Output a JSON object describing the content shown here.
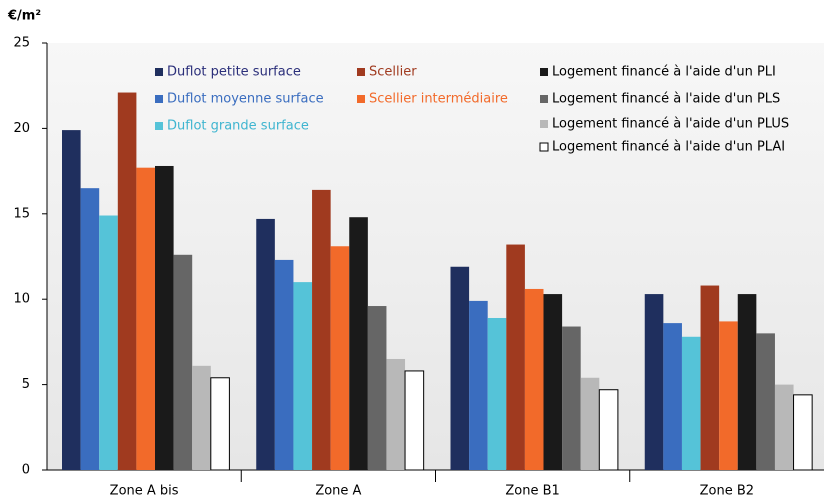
{
  "chart_data": {
    "type": "bar",
    "unit_label": "€/m²",
    "categories": [
      "Zone A bis",
      "Zone A",
      "Zone B1",
      "Zone B2"
    ],
    "series": [
      {
        "name": "Duflot petite surface",
        "color": "#1f2f5e",
        "label_color": "#2b2f7a",
        "values": [
          19.9,
          14.7,
          11.9,
          10.3
        ]
      },
      {
        "name": "Duflot moyenne surface",
        "color": "#3a6dbf",
        "label_color": "#3a6dbf",
        "values": [
          16.5,
          12.3,
          9.9,
          8.6
        ]
      },
      {
        "name": "Duflot grande surface",
        "color": "#55c3d8",
        "label_color": "#3fb5d0",
        "values": [
          14.9,
          11.0,
          8.9,
          7.8
        ]
      },
      {
        "name": "Scellier",
        "color": "#a03a1f",
        "label_color": "#a03a1f",
        "values": [
          22.1,
          16.4,
          13.2,
          10.8
        ]
      },
      {
        "name": "Scellier intermédiaire",
        "color": "#f26a2a",
        "label_color": "#f26a2a",
        "values": [
          17.7,
          13.1,
          10.6,
          8.7
        ]
      },
      {
        "name": "Logement financé à l'aide d'un PLI",
        "color": "#1a1a1a",
        "label_color": "#000000",
        "values": [
          17.8,
          14.8,
          10.3,
          10.3
        ]
      },
      {
        "name": "Logement financé à l'aide d'un PLS",
        "color": "#666666",
        "label_color": "#000000",
        "values": [
          12.6,
          9.6,
          8.4,
          8.0
        ]
      },
      {
        "name": "Logement financé à l'aide d'un PLUS",
        "color": "#b8b8b8",
        "label_color": "#000000",
        "values": [
          6.1,
          6.5,
          5.4,
          5.0
        ]
      },
      {
        "name": "Logement financé à l'aide d'un PLAI",
        "color": "#ffffff",
        "label_color": "#000000",
        "values": [
          5.4,
          5.8,
          4.7,
          4.4
        ]
      }
    ],
    "ylim": [
      0,
      25
    ],
    "yticks": [
      0,
      5,
      10,
      15,
      20,
      25
    ]
  }
}
